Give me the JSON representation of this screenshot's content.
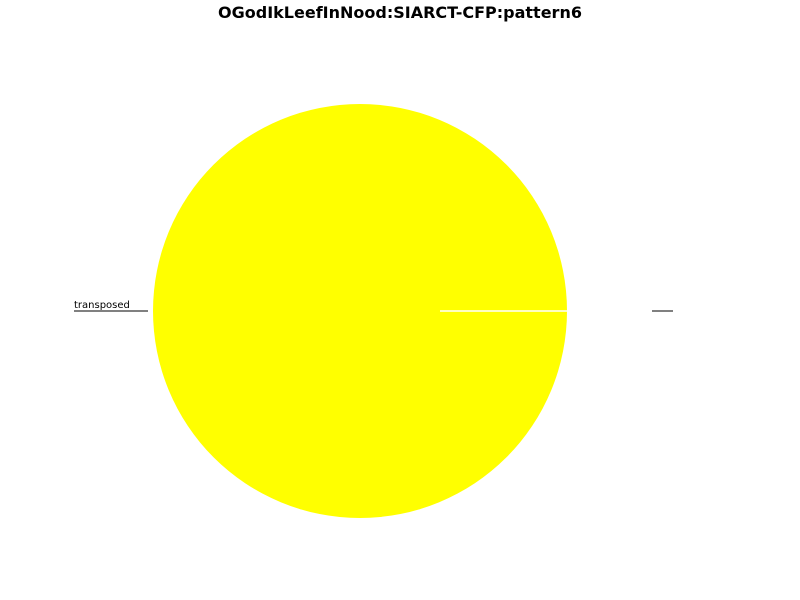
{
  "chart_data": {
    "type": "pie",
    "title": "OGodIkLeefInNood:SIARCT-CFP:pattern6",
    "slices": [
      {
        "label": "transposed",
        "value": 100,
        "color": "#ffff00"
      },
      {
        "label": "",
        "value": 0,
        "color": "#ffff00"
      }
    ],
    "legend": "none",
    "grid": false
  }
}
